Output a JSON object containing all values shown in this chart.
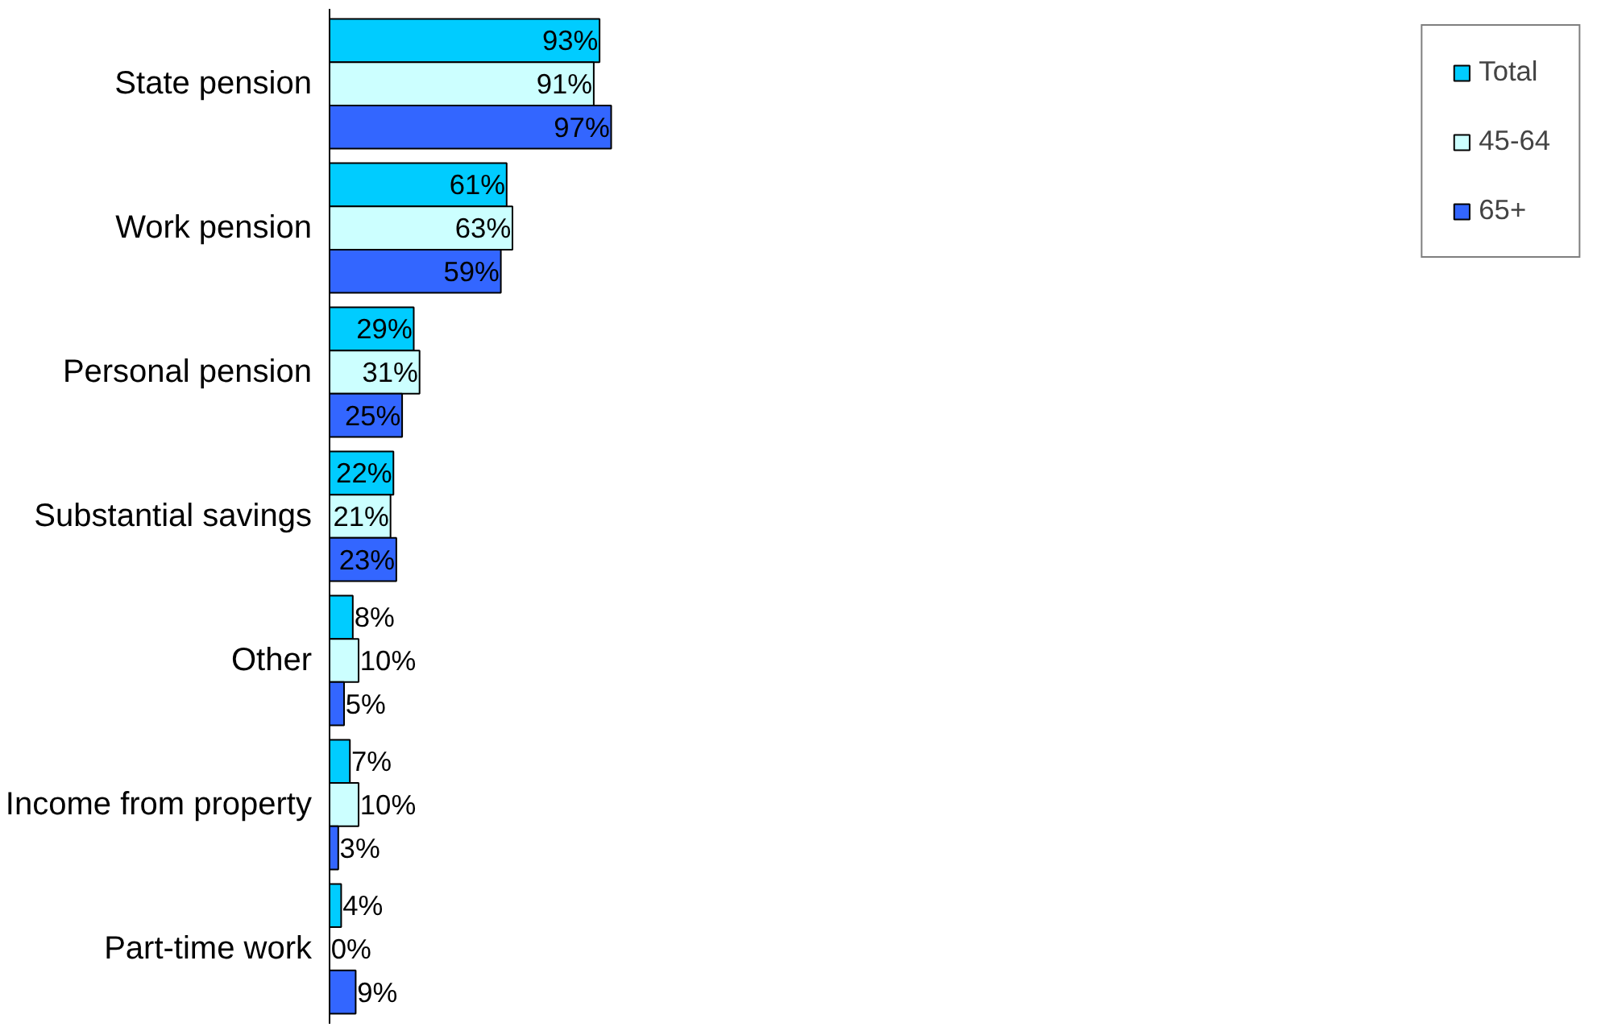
{
  "chart_data": {
    "type": "bar",
    "orientation": "horizontal",
    "categories": [
      "State pension",
      "Work pension",
      "Personal pension",
      "Substantial savings",
      "Other",
      "Income from property",
      "Part-time work"
    ],
    "series": [
      {
        "name": "Total",
        "color": "#00ccff",
        "values": [
          93,
          61,
          29,
          22,
          8,
          7,
          4
        ],
        "value_labels": [
          "93%",
          "61%",
          "29%",
          "22%",
          "8%",
          "7%",
          "4%"
        ]
      },
      {
        "name": "45-64",
        "color": "#ccffff",
        "values": [
          91,
          63,
          31,
          21,
          10,
          10,
          0
        ],
        "value_labels": [
          "91%",
          "63%",
          "31%",
          "21%",
          "10%",
          "10%",
          "0%"
        ]
      },
      {
        "name": "65+",
        "color": "#3366ff",
        "values": [
          97,
          59,
          25,
          23,
          5,
          3,
          9
        ],
        "value_labels": [
          "97%",
          "59%",
          "25%",
          "23%",
          "5%",
          "3%",
          "9%"
        ]
      }
    ],
    "legend": "right",
    "grid": false
  }
}
